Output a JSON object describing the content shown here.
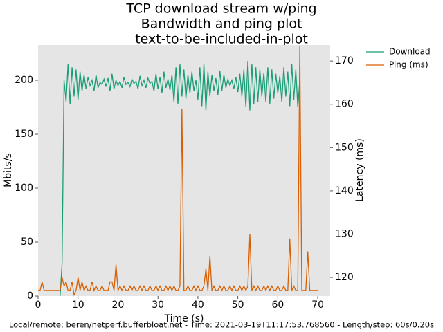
{
  "chart_data": {
    "type": "line",
    "title": [
      "TCP download stream w/ping",
      "Bandwidth and ping plot",
      "text-to-be-included-in-plot"
    ],
    "x_label": "Time (s)",
    "y_label": "Mbits/s",
    "y2_label": "Latency (ms)",
    "footer": "Local/remote: beren/netperf.bufferbloat.net - Time: 2021-03-19T11:17:53.768560 - Length/step: 60s/0.20s",
    "xlim": [
      0,
      73.1
    ],
    "ylim": [
      0,
      232.7
    ],
    "y2lim": [
      115.7,
      173.7
    ],
    "xticks": [
      0,
      10,
      20,
      30,
      40,
      50,
      60,
      70
    ],
    "yticks": [
      0,
      50,
      100,
      150,
      200
    ],
    "y2ticks": [
      120,
      130,
      140,
      150,
      160,
      170
    ],
    "legend": "outside-upper-right",
    "x": [
      0,
      0.5,
      1,
      1.5,
      2,
      2.5,
      3,
      3.5,
      4,
      4.5,
      5,
      5.5,
      6,
      6.5,
      7,
      7.5,
      8,
      8.5,
      9,
      9.5,
      10,
      10.5,
      11,
      11.5,
      12,
      12.5,
      13,
      13.5,
      14,
      14.5,
      15,
      15.5,
      16,
      16.5,
      17,
      17.5,
      18,
      18.5,
      19,
      19.5,
      20,
      20.5,
      21,
      21.5,
      22,
      22.5,
      23,
      23.5,
      24,
      24.5,
      25,
      25.5,
      26,
      26.5,
      27,
      27.5,
      28,
      28.5,
      29,
      29.5,
      30,
      30.5,
      31,
      31.5,
      32,
      32.5,
      33,
      33.5,
      34,
      34.5,
      35,
      35.5,
      36,
      36.5,
      37,
      37.5,
      38,
      38.5,
      39,
      39.5,
      40,
      40.5,
      41,
      41.5,
      42,
      42.5,
      43,
      43.5,
      44,
      44.5,
      45,
      45.5,
      46,
      46.5,
      47,
      47.5,
      48,
      48.5,
      49,
      49.5,
      50,
      50.5,
      51,
      51.5,
      52,
      52.5,
      53,
      53.5,
      54,
      54.5,
      55,
      55.5,
      56,
      56.5,
      57,
      57.5,
      58,
      58.5,
      59,
      59.5,
      60,
      60.5,
      61,
      61.5,
      62,
      62.5,
      63,
      63.5,
      64,
      64.5,
      65,
      65.5,
      66,
      66.5,
      67,
      67.5,
      68,
      68.5,
      69,
      69.5,
      70
    ],
    "series": [
      {
        "name": "Download",
        "color": "#1b9e77",
        "axis": "y",
        "values": [
          null,
          null,
          null,
          null,
          null,
          null,
          null,
          null,
          null,
          null,
          null,
          0,
          30,
          200,
          180,
          215,
          178,
          212,
          185,
          210,
          182,
          208,
          190,
          205,
          192,
          203,
          195,
          200,
          190,
          205,
          193,
          198,
          196,
          201,
          194,
          202,
          190,
          206,
          192,
          200,
          195,
          199,
          193,
          203,
          196,
          198,
          194,
          201,
          197,
          199,
          192,
          204,
          195,
          200,
          193,
          202,
          197,
          199,
          190,
          206,
          192,
          203,
          188,
          208,
          193,
          201,
          191,
          205,
          180,
          212,
          178,
          215,
          185,
          210,
          183,
          205,
          188,
          208,
          190,
          200,
          182,
          212,
          176,
          215,
          172,
          208,
          185,
          205,
          190,
          202,
          186,
          209,
          190,
          205,
          193,
          201,
          195,
          200,
          192,
          203,
          189,
          206,
          185,
          210,
          175,
          218,
          172,
          215,
          178,
          212,
          180,
          210,
          185,
          207,
          180,
          212,
          178,
          210,
          183,
          206,
          188,
          204,
          180,
          212,
          185,
          208,
          176,
          215,
          182,
          210,
          175,
          200,
          null,
          null,
          null,
          null,
          null,
          null,
          null,
          null,
          null
        ]
      },
      {
        "name": "Ping (ms)",
        "color": "#d95f02",
        "axis": "y2",
        "values": [
          117,
          117,
          119,
          117,
          117,
          117,
          117,
          117,
          117,
          117,
          117,
          117,
          120,
          118,
          119,
          117,
          117,
          119,
          116,
          117,
          120,
          117,
          119,
          117,
          118,
          117,
          117,
          119,
          117,
          118,
          117,
          117,
          118,
          117,
          117,
          117,
          119,
          119,
          117,
          123,
          117,
          118,
          117,
          118,
          117,
          117,
          118,
          117,
          118,
          117,
          117,
          118,
          117,
          118,
          117,
          117,
          118,
          117,
          117,
          118,
          117,
          118,
          117,
          117,
          118,
          117,
          118,
          117,
          118,
          117,
          117,
          118,
          159,
          117,
          117,
          118,
          117,
          117,
          118,
          117,
          118,
          117,
          117,
          118,
          122,
          117,
          125,
          117,
          118,
          117,
          117,
          118,
          117,
          118,
          117,
          117,
          118,
          117,
          118,
          117,
          117,
          118,
          117,
          118,
          117,
          118,
          130,
          117,
          118,
          117,
          118,
          117,
          117,
          118,
          117,
          118,
          117,
          118,
          117,
          117,
          118,
          117,
          117,
          118,
          117,
          117,
          129,
          117,
          118,
          117,
          117,
          173.5,
          117,
          117,
          117,
          126,
          117,
          117,
          117,
          117,
          117
        ]
      }
    ]
  }
}
